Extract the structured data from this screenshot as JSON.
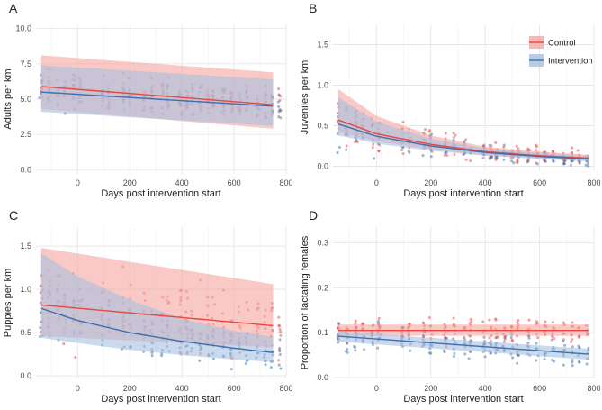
{
  "colors": {
    "control": "#e8483f",
    "control_band": "#f5a5a0",
    "intervention": "#3f6fad",
    "intervention_band": "#a7bfdf",
    "grid": "#e6e6e6"
  },
  "legend": {
    "position": "top-right",
    "panel": "B",
    "entries": [
      "Control",
      "Intervention"
    ]
  },
  "chart_data": [
    {
      "type": "scatter",
      "panel": "A",
      "xlabel": "Days post intervention start",
      "ylabel": "Adults per km",
      "xlim": [
        -160,
        800
      ],
      "ylim": [
        -0.3,
        10.3
      ],
      "xticks": [
        0,
        200,
        400,
        600,
        800
      ],
      "yticks": [
        "0.0",
        "2.5",
        "5.0",
        "7.5",
        "10.0"
      ],
      "series": [
        {
          "name": "Control",
          "line": [
            [
              -140,
              5.9
            ],
            [
              750,
              4.6
            ]
          ],
          "band_lower": [
            [
              -140,
              4.3
            ],
            [
              750,
              2.9
            ]
          ],
          "band_upper": [
            [
              -140,
              8.1
            ],
            [
              750,
              6.9
            ]
          ]
        },
        {
          "name": "Intervention",
          "line": [
            [
              -140,
              5.5
            ],
            [
              750,
              4.5
            ]
          ],
          "band_lower": [
            [
              -140,
              4.1
            ],
            [
              750,
              3.1
            ]
          ],
          "band_upper": [
            [
              -140,
              7.4
            ],
            [
              750,
              6.4
            ]
          ]
        }
      ]
    },
    {
      "type": "scatter",
      "panel": "B",
      "xlabel": "Days post intervention start",
      "ylabel": "Juveniles per km",
      "xlim": [
        -160,
        800
      ],
      "ylim": [
        -0.05,
        1.75
      ],
      "xticks": [
        0,
        200,
        400,
        600,
        800
      ],
      "yticks": [
        "0.0",
        "0.5",
        "1.0",
        "1.5"
      ],
      "series": [
        {
          "name": "Control",
          "line": [
            [
              -140,
              0.57
            ],
            [
              0,
              0.4
            ],
            [
              200,
              0.27
            ],
            [
              400,
              0.18
            ],
            [
              600,
              0.13
            ],
            [
              780,
              0.1
            ]
          ],
          "band_lower": [
            [
              -140,
              0.42
            ],
            [
              0,
              0.31
            ],
            [
              200,
              0.21
            ],
            [
              400,
              0.14
            ],
            [
              600,
              0.1
            ],
            [
              780,
              0.07
            ]
          ],
          "band_upper": [
            [
              -140,
              0.95
            ],
            [
              0,
              0.62
            ],
            [
              200,
              0.38
            ],
            [
              400,
              0.24
            ],
            [
              600,
              0.18
            ],
            [
              780,
              0.14
            ]
          ]
        },
        {
          "name": "Intervention",
          "line": [
            [
              -140,
              0.52
            ],
            [
              0,
              0.37
            ],
            [
              200,
              0.25
            ],
            [
              400,
              0.17
            ],
            [
              600,
              0.12
            ],
            [
              780,
              0.09
            ]
          ],
          "band_lower": [
            [
              -140,
              0.38
            ],
            [
              0,
              0.28
            ],
            [
              200,
              0.19
            ],
            [
              400,
              0.13
            ],
            [
              600,
              0.09
            ],
            [
              780,
              0.06
            ]
          ],
          "band_upper": [
            [
              -140,
              0.85
            ],
            [
              0,
              0.55
            ],
            [
              200,
              0.34
            ],
            [
              400,
              0.22
            ],
            [
              600,
              0.16
            ],
            [
              780,
              0.13
            ]
          ]
        }
      ]
    },
    {
      "type": "scatter",
      "panel": "C",
      "xlabel": "Days post intervention start",
      "ylabel": "Puppies per km",
      "xlim": [
        -160,
        800
      ],
      "ylim": [
        -0.03,
        1.72
      ],
      "xticks": [
        0,
        200,
        400,
        600,
        800
      ],
      "yticks": [
        "0.0",
        "0.5",
        "1.0",
        "1.5"
      ],
      "series": [
        {
          "name": "Control",
          "line": [
            [
              -140,
              0.82
            ],
            [
              750,
              0.58
            ]
          ],
          "band_lower": [
            [
              -140,
              0.46
            ],
            [
              750,
              0.33
            ]
          ],
          "band_upper": [
            [
              -140,
              1.48
            ],
            [
              750,
              1.06
            ]
          ]
        },
        {
          "name": "Intervention",
          "line": [
            [
              -140,
              0.78
            ],
            [
              0,
              0.64
            ],
            [
              200,
              0.5
            ],
            [
              400,
              0.4
            ],
            [
              600,
              0.32
            ],
            [
              750,
              0.27
            ]
          ],
          "band_lower": [
            [
              -140,
              0.44
            ],
            [
              0,
              0.38
            ],
            [
              200,
              0.3
            ],
            [
              400,
              0.24
            ],
            [
              600,
              0.19
            ],
            [
              750,
              0.16
            ]
          ],
          "band_upper": [
            [
              -140,
              1.42
            ],
            [
              0,
              1.15
            ],
            [
              200,
              0.88
            ],
            [
              400,
              0.66
            ],
            [
              600,
              0.52
            ],
            [
              750,
              0.45
            ]
          ]
        }
      ]
    },
    {
      "type": "scatter",
      "panel": "D",
      "xlabel": "Days post intervention start",
      "ylabel": "Proportion of lactating females",
      "xlim": [
        -160,
        800
      ],
      "ylim": [
        -0.002,
        0.335
      ],
      "xticks": [
        0,
        200,
        400,
        600,
        800
      ],
      "yticks": [
        "0.0",
        "0.1",
        "0.2",
        "0.3"
      ],
      "series": [
        {
          "name": "Control",
          "line": [
            [
              -140,
              0.105
            ],
            [
              780,
              0.105
            ]
          ],
          "band_lower": [
            [
              -140,
              0.093
            ],
            [
              780,
              0.093
            ]
          ],
          "band_upper": [
            [
              -140,
              0.118
            ],
            [
              780,
              0.118
            ]
          ]
        },
        {
          "name": "Intervention",
          "line": [
            [
              -140,
              0.092
            ],
            [
              780,
              0.052
            ]
          ],
          "band_lower": [
            [
              -140,
              0.08
            ],
            [
              780,
              0.04
            ]
          ],
          "band_upper": [
            [
              -140,
              0.103
            ],
            [
              780,
              0.064
            ]
          ]
        }
      ]
    }
  ]
}
